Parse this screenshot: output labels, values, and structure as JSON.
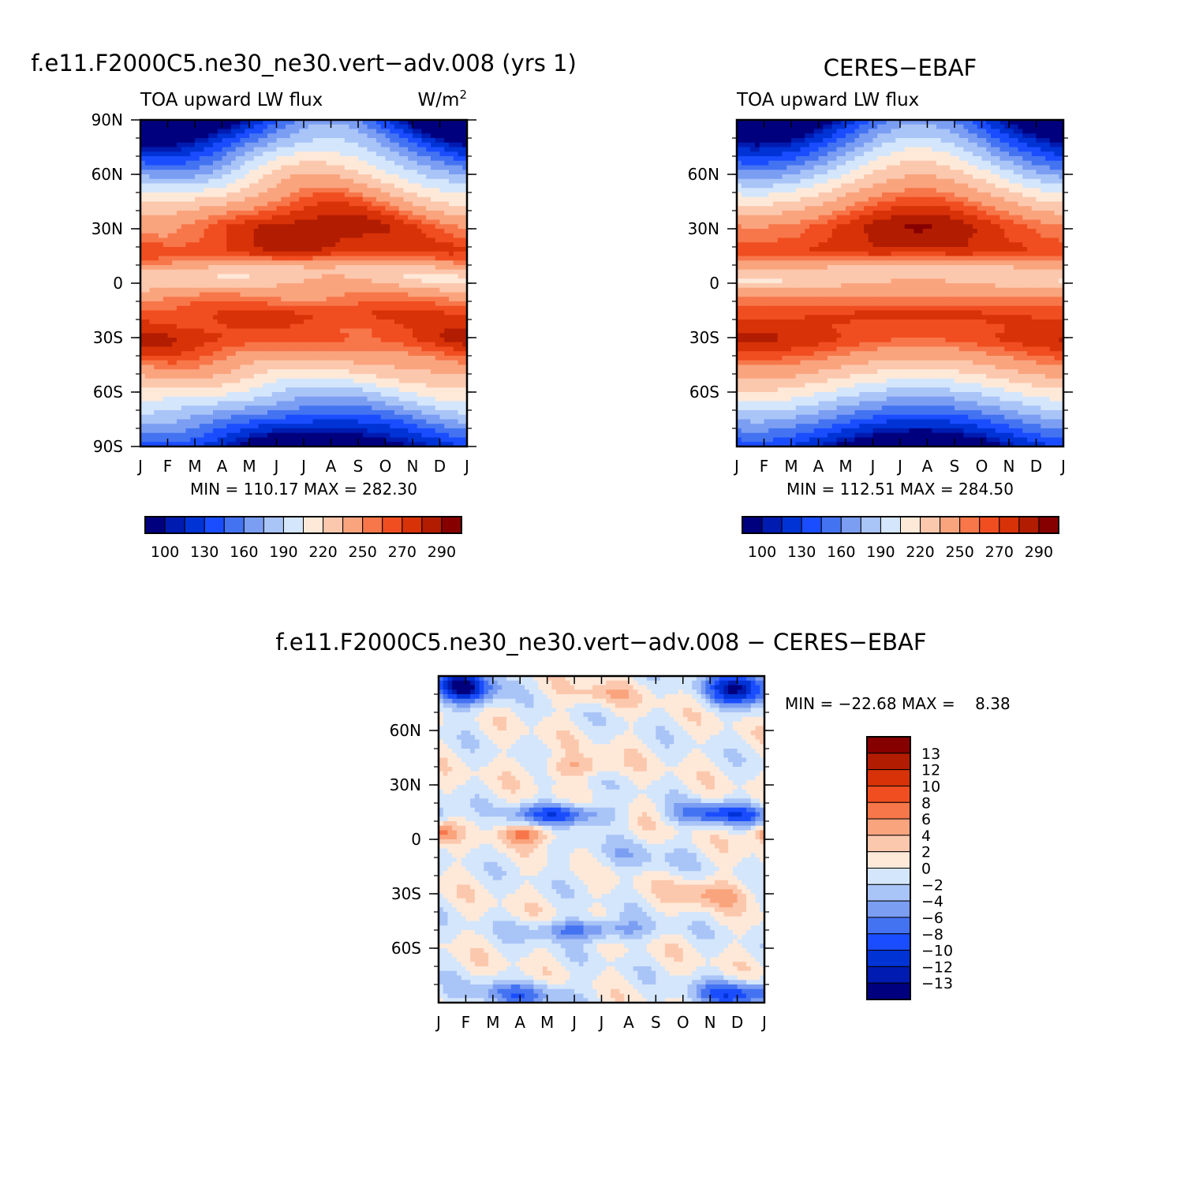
{
  "palette": [
    "#00007f",
    "#001bb0",
    "#0033d6",
    "#1a4dff",
    "#4473f2",
    "#7b9ef3",
    "#a9c4f7",
    "#d4e6fb",
    "#fee9d9",
    "#fcc8ad",
    "#faa47e",
    "#f7774a",
    "#f04e20",
    "#d83208",
    "#b21c00",
    "#860000"
  ],
  "chart_data": [
    {
      "type": "heatmap",
      "id": "model",
      "title": "f.e11.F2000C5.ne30_ne30.vert−adv.008 (yrs 1)",
      "left_label": "TOA upward LW flux",
      "units": "W/m",
      "units_sup": "2",
      "x_ticks": [
        "J",
        "F",
        "M",
        "A",
        "M",
        "J",
        "J",
        "A",
        "S",
        "O",
        "N",
        "D",
        "J"
      ],
      "y_ticks": [
        "90N",
        "60N",
        "30N",
        "0",
        "30S",
        "60S",
        "90S"
      ],
      "y_values": [
        90,
        60,
        30,
        0,
        -30,
        -60,
        -90
      ],
      "ylim": [
        -90,
        90
      ],
      "min_max": "MIN = 110.17  MAX = 282.30",
      "colorbar": {
        "orientation": "horizontal",
        "labels": [
          "100",
          "130",
          "160",
          "190",
          "220",
          "250",
          "270",
          "290"
        ]
      },
      "contour_levels": [
        100,
        110,
        120,
        130,
        140,
        150,
        160,
        170,
        180,
        190,
        200,
        210,
        220,
        230,
        240,
        250,
        260,
        270,
        280,
        290
      ]
    },
    {
      "type": "heatmap",
      "id": "obs",
      "title": "CERES−EBAF",
      "left_label": "TOA upward LW flux",
      "x_ticks": [
        "J",
        "F",
        "M",
        "A",
        "M",
        "J",
        "J",
        "A",
        "S",
        "O",
        "N",
        "D",
        "J"
      ],
      "y_ticks": [
        "60N",
        "30N",
        "0",
        "30S",
        "60S"
      ],
      "y_values": [
        60,
        30,
        0,
        -30,
        -60
      ],
      "ylim": [
        -90,
        90
      ],
      "min_max": "MIN = 112.51  MAX = 284.50",
      "colorbar": {
        "orientation": "horizontal",
        "labels": [
          "100",
          "130",
          "160",
          "190",
          "220",
          "250",
          "270",
          "290"
        ]
      }
    },
    {
      "type": "heatmap",
      "id": "diff",
      "title": "f.e11.F2000C5.ne30_ne30.vert−adv.008 − CERES−EBAF",
      "x_ticks": [
        "J",
        "F",
        "M",
        "A",
        "M",
        "J",
        "J",
        "A",
        "S",
        "O",
        "N",
        "D",
        "J"
      ],
      "y_ticks": [
        "60N",
        "30N",
        "0",
        "30S",
        "60S"
      ],
      "y_values": [
        60,
        30,
        0,
        -30,
        -60
      ],
      "ylim": [
        -90,
        90
      ],
      "min_max": "MIN = −22.68 MAX =    8.38",
      "colorbar": {
        "orientation": "vertical",
        "labels": [
          "13",
          "12",
          "10",
          "8",
          "6",
          "4",
          "2",
          "0",
          "−2",
          "−4",
          "−6",
          "−8",
          "−10",
          "−12",
          "−13"
        ]
      }
    }
  ]
}
